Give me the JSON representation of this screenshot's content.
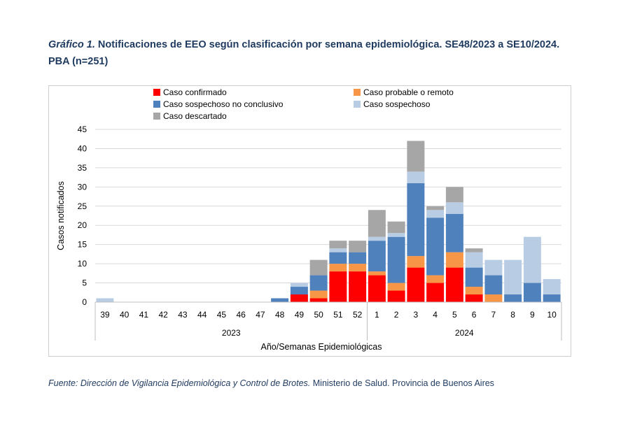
{
  "figure": {
    "label": "Gráfico 1.",
    "title_text": "Notificaciones de EEO según clasificación por semana epidemiológica. SE48/2023 a SE10/2024.",
    "title_line2": "PBA (n=251)"
  },
  "source": {
    "italic": "Fuente: Dirección de Vigilancia Epidemiológica y Control de Brotes.",
    "normal": "Ministerio de Salud. Provincia de Buenos Aires"
  },
  "colors": {
    "confirmado": "#ff0000",
    "probable": "#f79646",
    "sospechoso_nc": "#4f81bd",
    "sospechoso": "#b8cce4",
    "descartado": "#a6a6a6"
  },
  "chart_data": {
    "type": "bar",
    "stacked": true,
    "xlabel": "Año/Semanas Epidemiológicas",
    "ylabel": "Casos notificados",
    "ylim": [
      0,
      45
    ],
    "yticks": [
      0,
      5,
      10,
      15,
      20,
      25,
      30,
      35,
      40,
      45
    ],
    "grid": true,
    "legend_placement": "top",
    "categories": [
      "39",
      "40",
      "41",
      "42",
      "43",
      "44",
      "45",
      "46",
      "47",
      "48",
      "49",
      "50",
      "51",
      "52",
      "1",
      "2",
      "3",
      "4",
      "5",
      "6",
      "7",
      "8",
      "9",
      "10"
    ],
    "year_groups": [
      {
        "label": "2023",
        "from": 0,
        "to": 13
      },
      {
        "label": "2024",
        "from": 14,
        "to": 23
      }
    ],
    "series": [
      {
        "name": "Caso confirmado",
        "color_key": "confirmado",
        "values": [
          0,
          0,
          0,
          0,
          0,
          0,
          0,
          0,
          0,
          0,
          2,
          1,
          8,
          8,
          7,
          3,
          9,
          5,
          9,
          2,
          0,
          0,
          0,
          0
        ]
      },
      {
        "name": "Caso probable o remoto",
        "color_key": "probable",
        "values": [
          0,
          0,
          0,
          0,
          0,
          0,
          0,
          0,
          0,
          0,
          0,
          2,
          2,
          2,
          1,
          2,
          3,
          2,
          4,
          2,
          2,
          0,
          0,
          0
        ]
      },
      {
        "name": "Caso sospechoso no conclusivo",
        "color_key": "sospechoso_nc",
        "values": [
          0,
          0,
          0,
          0,
          0,
          0,
          0,
          0,
          0,
          1,
          2,
          4,
          3,
          3,
          8,
          12,
          19,
          15,
          10,
          5,
          5,
          2,
          5,
          2
        ]
      },
      {
        "name": "Caso sospechoso",
        "color_key": "sospechoso",
        "values": [
          1,
          0,
          0,
          0,
          0,
          0,
          0,
          0,
          0,
          0,
          1,
          0,
          1,
          0,
          1,
          1,
          3,
          2,
          3,
          4,
          4,
          9,
          12,
          4
        ]
      },
      {
        "name": "Caso descartado",
        "color_key": "descartado",
        "values": [
          0,
          0,
          0,
          0,
          0,
          0,
          0,
          0,
          0,
          0,
          0,
          4,
          2,
          3,
          7,
          3,
          8,
          1,
          4,
          1,
          0,
          0,
          0,
          0
        ]
      }
    ]
  }
}
